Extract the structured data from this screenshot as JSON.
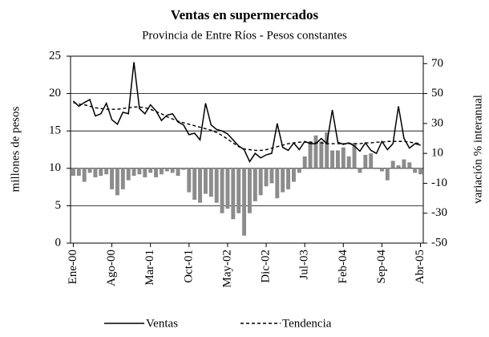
{
  "chart_data": {
    "type": "line",
    "title": "Ventas en supermercados",
    "subtitle": "Provincia de Entre Ríos - Pesos constantes",
    "ylabel": "millones de pesos",
    "y2label": "variación % interanual",
    "categories": [
      "Ene-00",
      null,
      null,
      null,
      null,
      null,
      null,
      "Ago-00",
      null,
      null,
      null,
      null,
      null,
      null,
      "Mar-01",
      null,
      null,
      null,
      null,
      null,
      null,
      "Oct-01",
      null,
      null,
      null,
      null,
      null,
      null,
      "May-02",
      null,
      null,
      null,
      null,
      null,
      null,
      "Dic-02",
      null,
      null,
      null,
      null,
      null,
      null,
      "Jul-03",
      null,
      null,
      null,
      null,
      null,
      null,
      "Feb-04",
      null,
      null,
      null,
      null,
      null,
      null,
      "Sep-04",
      null,
      null,
      null,
      null,
      null,
      null,
      "Abr-05"
    ],
    "series": [
      {
        "name": "Ventas",
        "color": "#000000",
        "style": "solid",
        "values": [
          19,
          18.3,
          18.8,
          19.2,
          17,
          17.3,
          18.7,
          16.5,
          15.9,
          17.5,
          17.3,
          24.2,
          18,
          17.3,
          18.5,
          17.7,
          16.4,
          17.1,
          17.3,
          16.2,
          15.8,
          14.5,
          14.7,
          13.8,
          18.7,
          15.8,
          15.2,
          15,
          14.6,
          13.8,
          13,
          12.5,
          10.9,
          12,
          11.4,
          11.8,
          12,
          16,
          12.8,
          12.4,
          13.4,
          12.5,
          13.6,
          13.3,
          13.3,
          14,
          13.3,
          17.8,
          13.5,
          13.2,
          13.4,
          13,
          12.3,
          13.4,
          12.4,
          12,
          13.6,
          12.5,
          13.3,
          18.3,
          14,
          12.7,
          13.3,
          13.1
        ]
      },
      {
        "name": "Tendencia",
        "color": "#000000",
        "style": "dashed",
        "values": [
          18.8,
          18.6,
          18.5,
          18.3,
          18.1,
          18,
          17.9,
          17.9,
          17.9,
          18,
          18.1,
          18.2,
          18.2,
          18.1,
          17.9,
          17.6,
          17.3,
          16.9,
          16.6,
          16.3,
          16.1,
          15.9,
          15.7,
          15.5,
          15.3,
          15.1,
          14.8,
          14.4,
          13.9,
          13.4,
          12.9,
          12.6,
          12.5,
          12.4,
          12.4,
          12.5,
          12.7,
          12.9,
          13.1,
          13.3,
          13.4,
          13.5,
          13.5,
          13.5,
          13.4,
          13.4,
          13.3,
          13.3,
          13.3,
          13.3,
          13.3,
          13.3,
          13.3,
          13.4,
          13.4,
          13.5,
          13.5,
          13.6,
          13.6,
          13.6,
          13.6,
          13.5,
          13.4,
          13.3
        ]
      },
      {
        "type": "bar",
        "axis": "y2",
        "color": "#8c8c8c",
        "values": [
          -5,
          -5,
          -9,
          -3,
          -6,
          -5,
          -4,
          -14,
          -18,
          -14,
          -8,
          -5,
          -4,
          -6,
          -3,
          -6,
          -4,
          -2,
          -3,
          -5,
          -1,
          -16,
          -21,
          -23,
          -17,
          -19,
          -23,
          -30,
          -27,
          -34,
          -30,
          -45,
          -30,
          -22,
          -18,
          -12,
          -10,
          -20,
          -16,
          -14,
          -9,
          -3,
          8,
          18,
          22,
          18,
          24,
          12,
          12,
          14,
          8,
          17,
          -3,
          9,
          10,
          0,
          -2,
          -8,
          5,
          2,
          6,
          4,
          -3,
          -4
        ]
      }
    ],
    "ylim": [
      0,
      25
    ],
    "yticks": [
      0,
      5,
      10,
      15,
      20,
      25
    ],
    "y2lim": [
      -50,
      75
    ],
    "y2ticks": [
      -50,
      -30,
      -10,
      10,
      30,
      50,
      70
    ],
    "grid": true
  }
}
